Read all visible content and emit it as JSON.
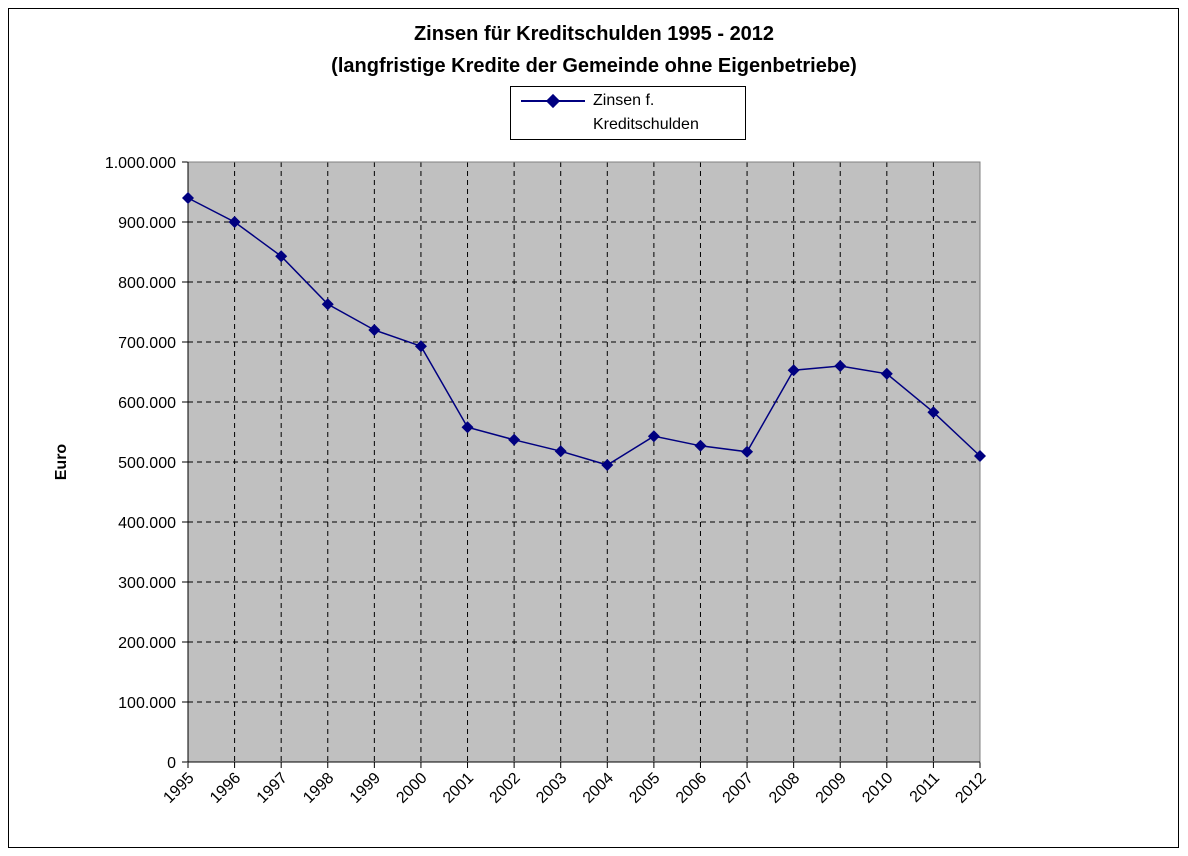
{
  "chart_data": {
    "type": "line",
    "title": "Zinsen für Kreditschulden 1995 - 2012",
    "subtitle": "(langfristige Kredite der Gemeinde ohne Eigenbetriebe)",
    "y_label": "Euro",
    "categories": [
      "1995",
      "1996",
      "1997",
      "1998",
      "1999",
      "2000",
      "2001",
      "2002",
      "2003",
      "2004",
      "2005",
      "2006",
      "2007",
      "2008",
      "2009",
      "2010",
      "2011",
      "2012"
    ],
    "series": [
      {
        "name": "Zinsen f. Kreditschulden",
        "color": "#000080",
        "values": [
          940000,
          900000,
          843000,
          763000,
          720000,
          693000,
          558000,
          537000,
          518000,
          495000,
          543000,
          527000,
          517000,
          653000,
          660000,
          647000,
          583000,
          510000
        ]
      }
    ],
    "ylim": [
      0,
      1000000
    ],
    "yticks": [
      0,
      {
        "value": 100000,
        "label": "100.000"
      },
      {
        "value": 200000,
        "label": "200.000"
      },
      {
        "value": 300000,
        "label": "300.000"
      },
      {
        "value": 400000,
        "label": "400.000"
      },
      {
        "value": 500000,
        "label": "500.000"
      },
      {
        "value": 600000,
        "label": "600.000"
      },
      {
        "value": 700000,
        "label": "700.000"
      },
      {
        "value": 800000,
        "label": "800.000"
      },
      {
        "value": 900000,
        "label": "900.000"
      },
      {
        "value": 1000000,
        "label": "1.000.000"
      }
    ],
    "grid": true,
    "legend": "top"
  }
}
